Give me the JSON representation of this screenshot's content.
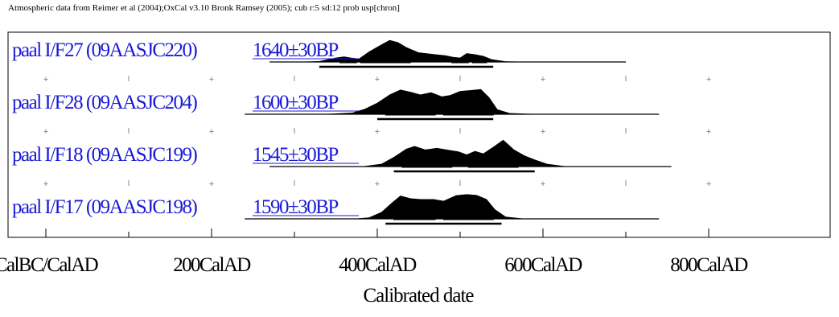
{
  "chart_data": {
    "type": "area",
    "title": "Atmospheric data from Reimer et al (2004);OxCal v3.10 Bronk Ramsey (2005); cub r:5 sd:12 prob usp[chron]",
    "xlabel": "Calibrated date",
    "xlim": [
      -100,
      850
    ],
    "x_ticks": [
      {
        "value": 0,
        "label": "CalBC/CalAD"
      },
      {
        "value": 200,
        "label": "200CalAD"
      },
      {
        "value": 400,
        "label": "400CalAD"
      },
      {
        "value": 600,
        "label": "600CalAD"
      },
      {
        "value": 800,
        "label": "800CalAD"
      }
    ],
    "series": [
      {
        "name": "paal I/F27 (09AASJC220)",
        "date_label": "1640±30BP",
        "baseline_range": [
          270,
          700
        ],
        "density": [
          [
            300,
            0
          ],
          [
            330,
            0.03
          ],
          [
            350,
            0.16
          ],
          [
            360,
            0.2
          ],
          [
            368,
            0.16
          ],
          [
            378,
            0.12
          ],
          [
            390,
            0.38
          ],
          [
            405,
            0.64
          ],
          [
            415,
            0.8
          ],
          [
            425,
            0.72
          ],
          [
            435,
            0.54
          ],
          [
            450,
            0.35
          ],
          [
            470,
            0.28
          ],
          [
            482,
            0.24
          ],
          [
            492,
            0.18
          ],
          [
            500,
            0.16
          ],
          [
            508,
            0.32
          ],
          [
            518,
            0.28
          ],
          [
            528,
            0.22
          ],
          [
            538,
            0.1
          ],
          [
            555,
            0.02
          ],
          [
            600,
            0
          ]
        ],
        "ranges_68": [
          [
            355,
            375
          ],
          [
            380,
            440
          ],
          [
            490,
            510
          ],
          [
            515,
            532
          ]
        ],
        "ranges_95": [
          [
            330,
            540
          ]
        ]
      },
      {
        "name": "paal I/F28 (09AASJC204)",
        "date_label": "1600±30BP",
        "baseline_range": [
          240,
          740
        ],
        "density": [
          [
            330,
            0
          ],
          [
            350,
            0.03
          ],
          [
            370,
            0.06
          ],
          [
            385,
            0.2
          ],
          [
            400,
            0.42
          ],
          [
            415,
            0.72
          ],
          [
            428,
            0.9
          ],
          [
            440,
            0.82
          ],
          [
            452,
            0.72
          ],
          [
            465,
            0.8
          ],
          [
            478,
            0.65
          ],
          [
            488,
            0.7
          ],
          [
            500,
            0.85
          ],
          [
            512,
            0.88
          ],
          [
            525,
            0.92
          ],
          [
            535,
            0.62
          ],
          [
            545,
            0.18
          ],
          [
            560,
            0.04
          ],
          [
            600,
            0
          ]
        ],
        "ranges_68": [
          [
            410,
            470
          ],
          [
            480,
            540
          ]
        ],
        "ranges_95": [
          [
            400,
            540
          ]
        ]
      },
      {
        "name": "paal I/F18 (09AASJC199)",
        "date_label": "1545±30BP",
        "baseline_range": [
          270,
          755
        ],
        "density": [
          [
            380,
            0
          ],
          [
            405,
            0.1
          ],
          [
            420,
            0.35
          ],
          [
            435,
            0.65
          ],
          [
            445,
            0.75
          ],
          [
            458,
            0.62
          ],
          [
            472,
            0.68
          ],
          [
            488,
            0.6
          ],
          [
            498,
            0.55
          ],
          [
            508,
            0.44
          ],
          [
            518,
            0.57
          ],
          [
            528,
            0.48
          ],
          [
            540,
            0.72
          ],
          [
            552,
            0.98
          ],
          [
            565,
            0.62
          ],
          [
            578,
            0.4
          ],
          [
            590,
            0.26
          ],
          [
            605,
            0.1
          ],
          [
            630,
            0
          ]
        ],
        "ranges_68": [
          [
            430,
            490
          ],
          [
            510,
            570
          ]
        ],
        "ranges_95": [
          [
            420,
            590
          ]
        ]
      },
      {
        "name": "paal I/F17 (09AASJC198)",
        "date_label": "1590±30BP",
        "baseline_range": [
          240,
          740
        ],
        "density": [
          [
            370,
            0
          ],
          [
            390,
            0.05
          ],
          [
            405,
            0.25
          ],
          [
            418,
            0.6
          ],
          [
            428,
            0.85
          ],
          [
            440,
            0.75
          ],
          [
            452,
            0.72
          ],
          [
            468,
            0.72
          ],
          [
            480,
            0.66
          ],
          [
            495,
            0.86
          ],
          [
            508,
            0.9
          ],
          [
            520,
            0.87
          ],
          [
            532,
            0.72
          ],
          [
            542,
            0.35
          ],
          [
            555,
            0.08
          ],
          [
            580,
            0
          ]
        ],
        "ranges_68": [
          [
            420,
            470
          ],
          [
            480,
            540
          ]
        ],
        "ranges_95": [
          [
            410,
            550
          ]
        ]
      }
    ],
    "colors": {
      "labels": "#1a1ad6",
      "distributions": "#000000"
    }
  }
}
